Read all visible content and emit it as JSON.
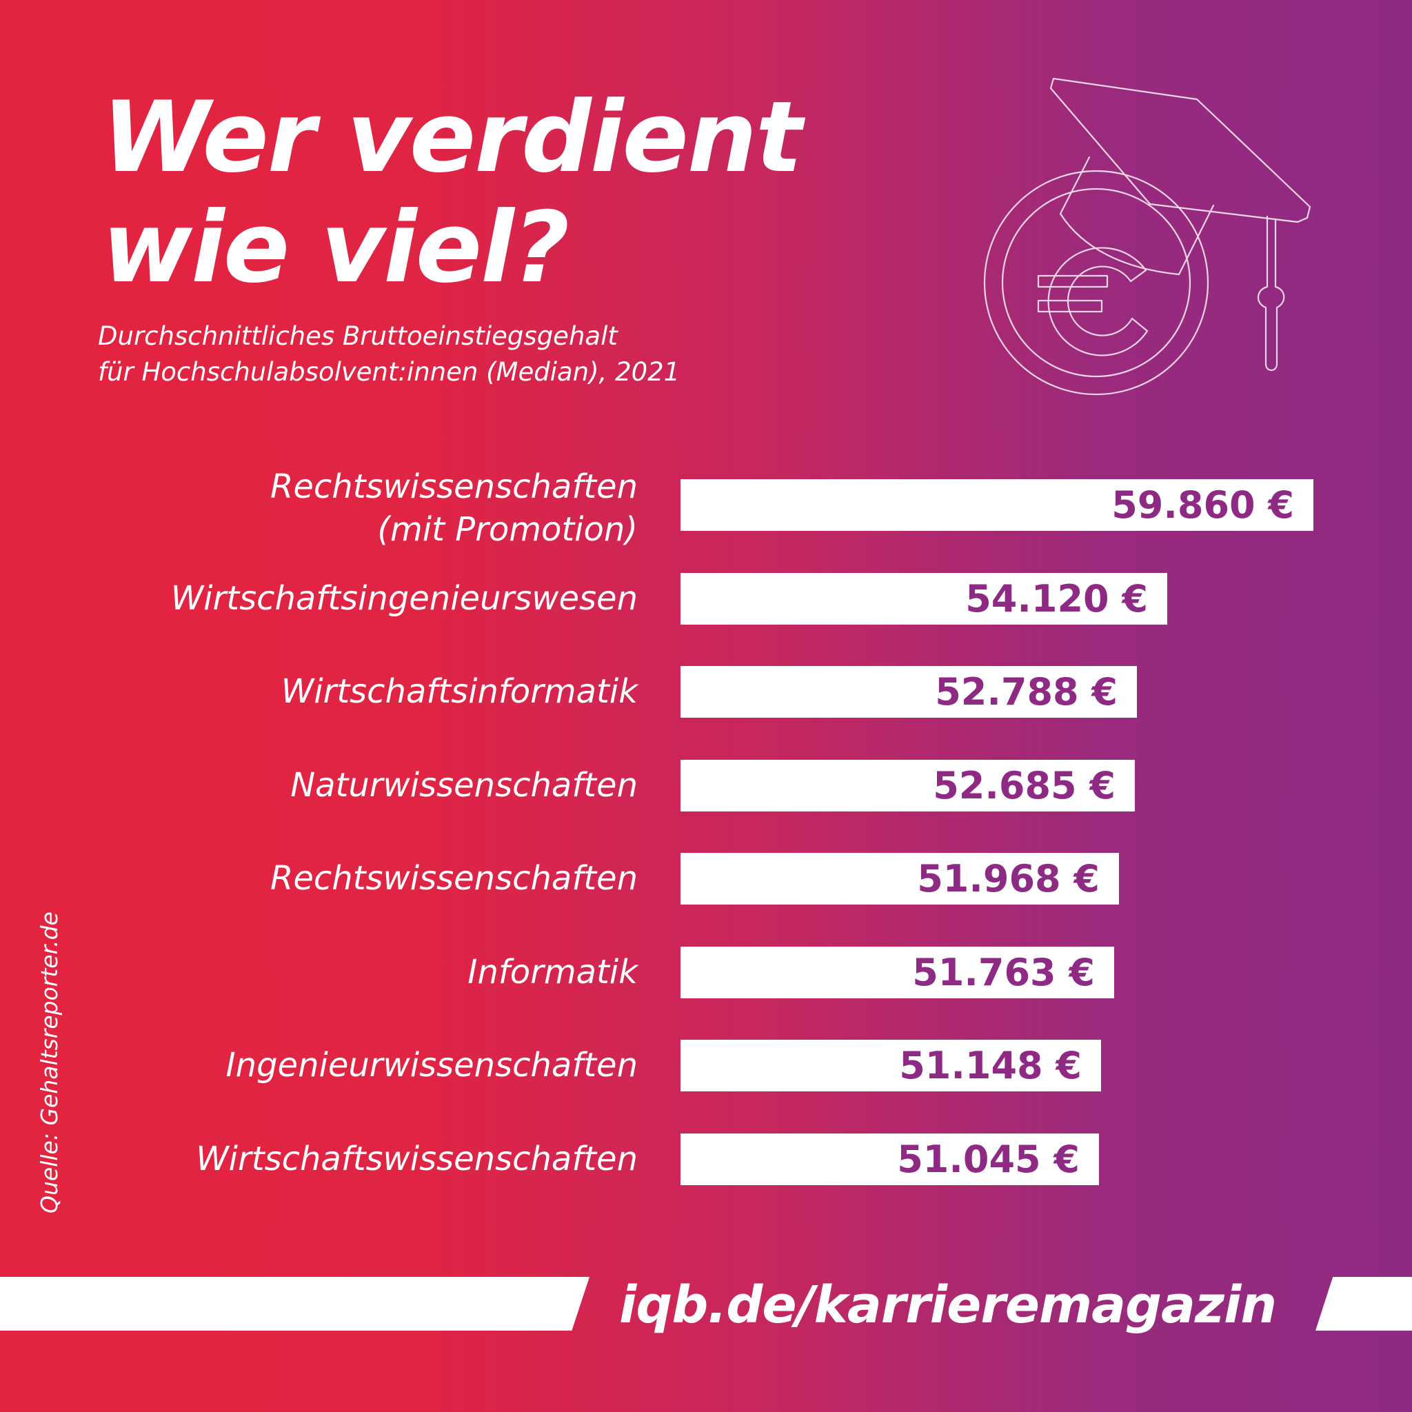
{
  "header": {
    "title_line1": "Wer verdient",
    "title_line2": "wie viel?",
    "subtitle_line1": "Durchschnittliches Bruttoeinstiegsgehalt",
    "subtitle_line2": "für Hochschulabsolvent:innen (Median), 2021"
  },
  "icon": "graduation-cap-euro-coin-icon",
  "chart_data": {
    "type": "bar",
    "orientation": "horizontal",
    "categories": [
      [
        "Rechtswissenschaften",
        "(mit Promotion)"
      ],
      [
        "Wirtschaftsingenieurswesen"
      ],
      [
        "Wirtschaftsinformatik"
      ],
      [
        "Naturwissenschaften"
      ],
      [
        "Rechtswissenschaften"
      ],
      [
        "Informatik"
      ],
      [
        "Ingenieurwissenschaften"
      ],
      [
        "Wirtschaftswissenschaften"
      ]
    ],
    "values": [
      59860,
      54120,
      52788,
      52685,
      51968,
      51763,
      51148,
      51045
    ],
    "value_labels": [
      "59.860 €",
      "54.120 €",
      "52.788 €",
      "52.685 €",
      "51.968 €",
      "51.763 €",
      "51.148 €",
      "51.045 €"
    ],
    "value_unit": "€",
    "bar_color": "#ffffff",
    "value_label_color": "#8f2a84",
    "grid": false
  },
  "footer": {
    "source": "Quelle: Gehaltsreporter.de",
    "url": "iqb.de/karrieremagazin"
  },
  "colors": {
    "gradient_left": "#e32440",
    "gradient_right": "#8e2a84",
    "text": "#ffffff"
  }
}
